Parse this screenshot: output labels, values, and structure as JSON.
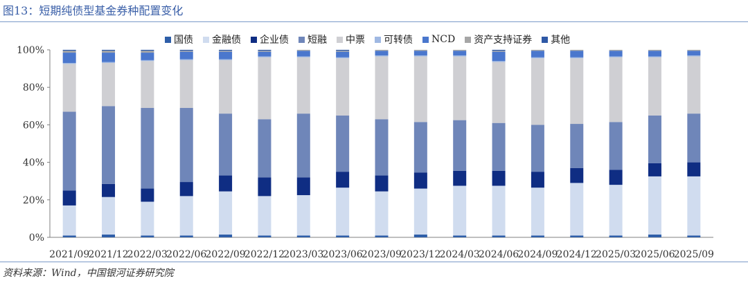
{
  "header": {
    "title": "图13：短期纯债型基金券种配置变化"
  },
  "footer": {
    "source": "资料来源：Wind，中国银河证券研究院"
  },
  "chart_data": {
    "type": "bar",
    "stacked": true,
    "percent": true,
    "categories": [
      "2021/09",
      "2021/12",
      "2022/03",
      "2022/06",
      "2022/09",
      "2022/12",
      "2023/03",
      "2023/06",
      "2023/09",
      "2023/12",
      "2024/03",
      "2024/06",
      "2024/09",
      "2024/12",
      "2025/03",
      "2025/06",
      "2025/09"
    ],
    "y_ticks": [
      "0%",
      "20%",
      "40%",
      "60%",
      "80%",
      "100%"
    ],
    "ylim": [
      0,
      100
    ],
    "legend_position": "top",
    "grid": false,
    "series": [
      {
        "name": "国债",
        "color": "#2e5ea8",
        "values": [
          1.0,
          1.5,
          1.0,
          1.0,
          1.5,
          1.0,
          1.0,
          1.0,
          1.0,
          1.5,
          1.0,
          1.0,
          1.0,
          1.0,
          1.0,
          1.5,
          1.0
        ]
      },
      {
        "name": "金融债",
        "color": "#d0dcef",
        "values": [
          16.0,
          20.0,
          18.0,
          21.0,
          23.0,
          21.0,
          21.5,
          25.5,
          23.5,
          24.5,
          26.5,
          26.5,
          25.5,
          28.0,
          27.0,
          31.0,
          31.5
        ]
      },
      {
        "name": "企业债",
        "color": "#0f2d83",
        "values": [
          8.0,
          7.0,
          7.0,
          7.5,
          8.5,
          10.0,
          9.5,
          8.5,
          8.5,
          8.5,
          8.0,
          8.0,
          8.5,
          8.0,
          8.0,
          7.0,
          7.5
        ]
      },
      {
        "name": "短融",
        "color": "#6f86b9",
        "values": [
          42.0,
          41.5,
          43.0,
          39.5,
          33.0,
          31.0,
          34.0,
          30.0,
          30.0,
          27.0,
          27.0,
          25.5,
          25.0,
          23.5,
          25.5,
          25.5,
          26.0
        ]
      },
      {
        "name": "中票",
        "color": "#cfcfd3",
        "values": [
          25.5,
          23.0,
          25.0,
          25.5,
          28.5,
          33.0,
          30.0,
          30.5,
          33.5,
          35.0,
          34.0,
          32.5,
          35.5,
          35.0,
          34.5,
          31.0,
          30.5
        ]
      },
      {
        "name": "可转债",
        "color": "#9fb8e2",
        "values": [
          0.5,
          0.5,
          0.5,
          0.5,
          0.5,
          0.5,
          0.5,
          0.5,
          0.5,
          0.5,
          0.5,
          0.5,
          0.5,
          0.5,
          0.5,
          0.5,
          0.5
        ]
      },
      {
        "name": "NCD",
        "color": "#4a77cd",
        "values": [
          5.5,
          5.0,
          4.0,
          4.0,
          4.0,
          2.5,
          3.0,
          3.0,
          2.5,
          2.5,
          2.5,
          5.0,
          3.5,
          3.5,
          3.0,
          3.0,
          2.5
        ]
      },
      {
        "name": "资产支持证券",
        "color": "#a6a6a6",
        "values": [
          1.0,
          1.0,
          1.0,
          0.5,
          0.5,
          0.5,
          0.5,
          0.5,
          0.5,
          0.5,
          0.5,
          0.5,
          0.5,
          0.5,
          0.5,
          0.5,
          0.5
        ]
      },
      {
        "name": "其他",
        "color": "#2f59a6",
        "values": [
          0.5,
          0.5,
          0.5,
          0.5,
          0.5,
          0.5,
          0.0,
          0.5,
          0.0,
          0.0,
          0.0,
          0.5,
          0.0,
          0.0,
          0.0,
          0.0,
          0.0
        ]
      }
    ]
  }
}
